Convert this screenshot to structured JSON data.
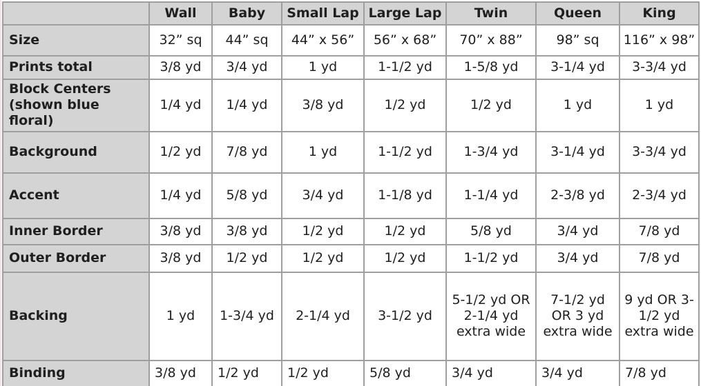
{
  "table": {
    "columns": [
      "",
      "Wall",
      "Baby",
      "Small Lap",
      "Large Lap",
      "Twin",
      "Queen",
      "King"
    ],
    "rows": [
      {
        "label": "Size",
        "values": [
          "32” sq",
          "44” sq",
          "44” x 56”",
          "56” x 68”",
          "70” x 88”",
          "98” sq",
          "116” x 98”"
        ]
      },
      {
        "label": "Prints total",
        "values": [
          "3/8 yd",
          "3/4 yd",
          "1 yd",
          "1-1/2 yd",
          "1-5/8 yd",
          "3-1/4 yd",
          "3-3/4 yd"
        ]
      },
      {
        "label": "Block Centers (shown blue floral)",
        "values": [
          "1/4 yd",
          "1/4 yd",
          "3/8 yd",
          "1/2 yd",
          "1/2 yd",
          "1 yd",
          "1 yd"
        ]
      },
      {
        "label": "Background",
        "values": [
          "1/2 yd",
          "7/8 yd",
          "1 yd",
          "1-1/2 yd",
          "1-3/4 yd",
          "3-1/4 yd",
          "3-3/4 yd"
        ]
      },
      {
        "label": "Accent",
        "values": [
          "1/4 yd",
          "5/8 yd",
          "3/4 yd",
          "1-1/8 yd",
          "1-1/4 yd",
          "2-3/8 yd",
          "2-3/4 yd"
        ]
      },
      {
        "label": "Inner Border",
        "values": [
          "3/8 yd",
          "3/8 yd",
          "1/2 yd",
          "1/2 yd",
          "5/8 yd",
          "3/4 yd",
          "7/8 yd"
        ]
      },
      {
        "label": "Outer Border",
        "values": [
          "3/8 yd",
          "1/2 yd",
          "1/2 yd",
          "1/2 yd",
          "1-1/2 yd",
          "3/4 yd",
          "7/8 yd"
        ]
      },
      {
        "label": "Backing",
        "values": [
          "1 yd",
          "1-3/4 yd",
          "2-1/4 yd",
          "3-1/2 yd",
          "5-1/2 yd OR 2-1/4 yd extra wide",
          "7-1/2 yd OR 3 yd extra wide",
          "9 yd OR 3-1/2 yd extra wide"
        ]
      },
      {
        "label": "Binding",
        "values": [
          "3/8 yd",
          "1/2 yd",
          "1/2 yd",
          "5/8 yd",
          "3/4 yd",
          "3/4 yd",
          "7/8 yd"
        ]
      }
    ]
  },
  "colors": {
    "header_fill": "#d4d4d4",
    "grid_border": "#9e9e9e",
    "cell_fill": "#ffffff",
    "text": "#1f1f1f",
    "left_edge_artifact": "#f6e3e3"
  }
}
